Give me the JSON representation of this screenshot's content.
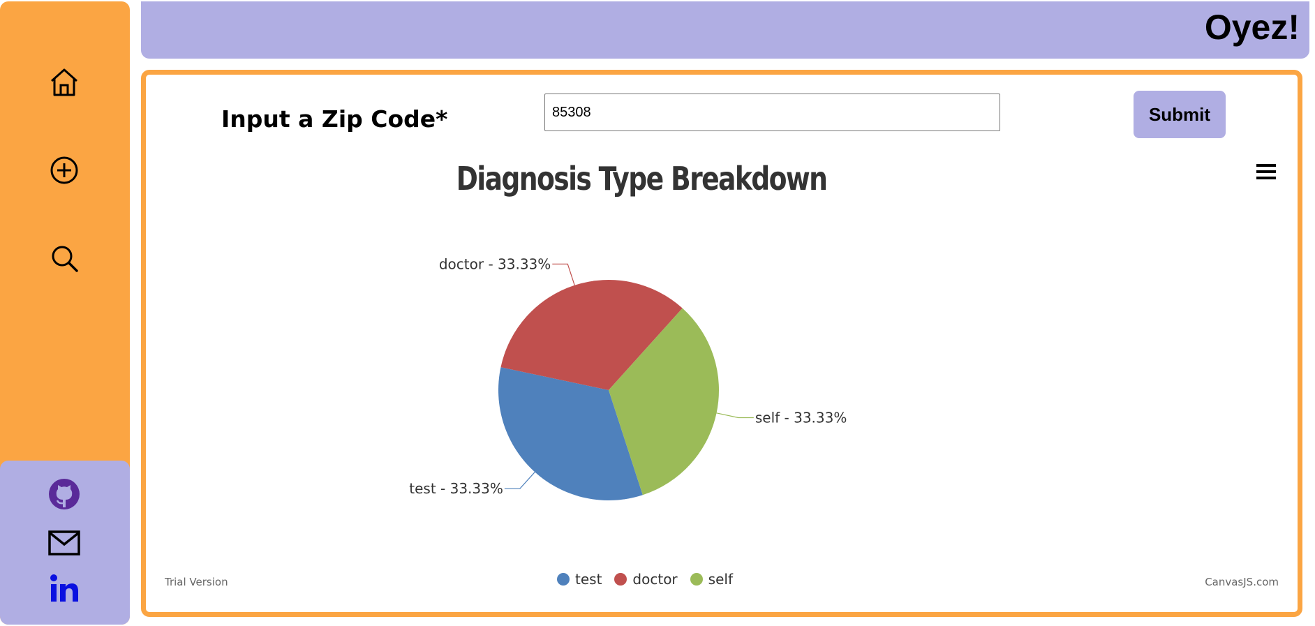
{
  "app": {
    "title": "Oyez!"
  },
  "sidebar": {
    "nav": [
      {
        "icon": "home-icon"
      },
      {
        "icon": "add-circle-icon"
      },
      {
        "icon": "search-icon"
      }
    ],
    "social": [
      {
        "icon": "github-icon"
      },
      {
        "icon": "mail-icon"
      },
      {
        "icon": "linkedin-icon"
      }
    ]
  },
  "form": {
    "zip_label": "Input a Zip Code*",
    "zip_value": "85308",
    "submit_label": "Submit"
  },
  "chart_meta": {
    "trial_text": "Trial Version",
    "credit_text": "CanvasJS.com",
    "menu_icon": "hamburger-menu-icon"
  },
  "colors": {
    "sidebar": "#fba543",
    "accent": "#b0aee3",
    "test": "#4f81bc",
    "doctor": "#c0504e",
    "self": "#9bbb58"
  },
  "chart_data": {
    "type": "pie",
    "title": "Diagnosis Type Breakdown",
    "slices": [
      {
        "label": "test",
        "value": 33.33,
        "display": "test - 33.33%",
        "color": "#4f81bc"
      },
      {
        "label": "doctor",
        "value": 33.33,
        "display": "doctor - 33.33%",
        "color": "#c0504e"
      },
      {
        "label": "self",
        "value": 33.33,
        "display": "self - 33.33%",
        "color": "#9bbb58"
      }
    ],
    "legend": [
      "test",
      "doctor",
      "self"
    ],
    "legend_position": "bottom"
  }
}
